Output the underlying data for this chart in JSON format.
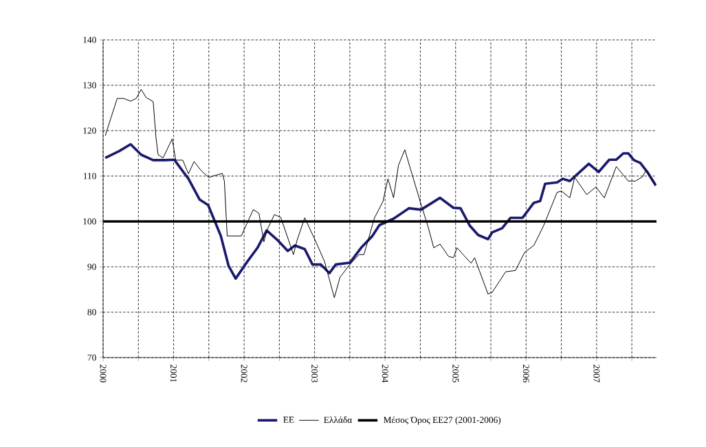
{
  "chart_data": {
    "type": "line",
    "xlim": [
      2000,
      2007.85
    ],
    "ylim": [
      70,
      140
    ],
    "xticks": [
      {
        "value": 2000,
        "label": "2000"
      },
      {
        "value": 2000.5,
        "label": null
      },
      {
        "value": 2001,
        "label": "2001"
      },
      {
        "value": 2001.5,
        "label": null
      },
      {
        "value": 2002,
        "label": "2002"
      },
      {
        "value": 2002.5,
        "label": null
      },
      {
        "value": 2003,
        "label": "2003"
      },
      {
        "value": 2003.5,
        "label": null
      },
      {
        "value": 2004,
        "label": "2004"
      },
      {
        "value": 2004.5,
        "label": null
      },
      {
        "value": 2005,
        "label": "2005"
      },
      {
        "value": 2005.5,
        "label": null
      },
      {
        "value": 2006,
        "label": "2006"
      },
      {
        "value": 2006.5,
        "label": null
      },
      {
        "value": 2007,
        "label": "2007"
      },
      {
        "value": 2007.5,
        "label": null
      }
    ],
    "yticks": [
      70,
      80,
      90,
      100,
      110,
      120,
      130,
      140
    ],
    "grid": true,
    "legend": "bottom",
    "series": [
      {
        "name": "ΕΕ",
        "color": "#1a1a6e",
        "x": [
          2000.03,
          2000.23,
          2000.39,
          2000.54,
          2000.71,
          2000.88,
          2001.01,
          2001.21,
          2001.37,
          2001.49,
          2001.67,
          2001.78,
          2001.88,
          2002.03,
          2002.19,
          2002.32,
          2002.48,
          2002.62,
          2002.72,
          2002.86,
          2002.97,
          2003.09,
          2003.21,
          2003.3,
          2003.5,
          2003.66,
          2003.82,
          2003.92,
          2004.12,
          2004.34,
          2004.51,
          2004.78,
          2004.97,
          2005.07,
          2005.2,
          2005.32,
          2005.46,
          2005.52,
          2005.66,
          2005.78,
          2005.95,
          2006.11,
          2006.2,
          2006.27,
          2006.44,
          2006.52,
          2006.62,
          2006.74,
          2006.89,
          2007.03,
          2007.18,
          2007.28,
          2007.38,
          2007.45,
          2007.53,
          2007.62,
          2007.72,
          2007.84
        ],
        "values": [
          114.0,
          115.5,
          117.0,
          114.7,
          113.5,
          113.5,
          113.6,
          109.4,
          104.8,
          103.6,
          96.8,
          90.2,
          87.4,
          90.8,
          94.2,
          98.0,
          95.8,
          93.5,
          94.7,
          93.9,
          90.5,
          90.5,
          88.6,
          90.5,
          90.9,
          94.2,
          96.8,
          99.2,
          100.6,
          102.9,
          102.6,
          105.2,
          103.0,
          102.9,
          99.1,
          97.0,
          96.1,
          97.6,
          98.5,
          100.8,
          100.8,
          104.1,
          104.5,
          108.3,
          108.6,
          109.4,
          108.9,
          110.6,
          112.7,
          110.9,
          113.6,
          113.6,
          115.0,
          115.0,
          113.5,
          112.9,
          110.9,
          107.9
        ]
      },
      {
        "name": "Ελλάδα",
        "color": "#000000",
        "x": [
          2000.03,
          2000.2,
          2000.29,
          2000.39,
          2000.47,
          2000.54,
          2000.61,
          2000.71,
          2000.75,
          2000.78,
          2000.85,
          2000.98,
          2001.03,
          2001.13,
          2001.21,
          2001.29,
          2001.39,
          2001.5,
          2001.69,
          2001.72,
          2001.76,
          2001.96,
          2002.13,
          2002.21,
          2002.28,
          2002.33,
          2002.43,
          2002.52,
          2002.7,
          2002.75,
          2002.86,
          2003.01,
          2003.14,
          2003.28,
          2003.36,
          2003.5,
          2003.63,
          2003.7,
          2003.85,
          2003.97,
          2004.04,
          2004.12,
          2004.19,
          2004.28,
          2004.38,
          2004.51,
          2004.61,
          2004.69,
          2004.78,
          2004.9,
          2004.97,
          2005.02,
          2005.13,
          2005.22,
          2005.27,
          2005.46,
          2005.52,
          2005.71,
          2005.85,
          2005.98,
          2006.11,
          2006.25,
          2006.32,
          2006.44,
          2006.5,
          2006.62,
          2006.69,
          2006.86,
          2006.99,
          2007.11,
          2007.28,
          2007.45,
          2007.55,
          2007.65,
          2007.7,
          2007.84
        ],
        "values": [
          118.9,
          127.1,
          127.1,
          126.5,
          127.1,
          129.1,
          127.3,
          126.4,
          118.5,
          114.7,
          114.0,
          118.2,
          113.5,
          113.5,
          110.5,
          113.2,
          111.2,
          109.7,
          110.6,
          108.9,
          96.8,
          96.8,
          102.6,
          101.8,
          95.5,
          98.3,
          101.5,
          100.9,
          92.7,
          95.8,
          100.8,
          95.8,
          91.2,
          83.2,
          87.7,
          90.5,
          92.7,
          92.7,
          100.8,
          104.4,
          109.4,
          105.2,
          112.4,
          115.8,
          110.5,
          103.8,
          98.8,
          94.2,
          95.0,
          92.3,
          92.0,
          94.2,
          92.3,
          90.8,
          92.0,
          84.0,
          84.4,
          88.9,
          89.2,
          93.2,
          94.7,
          99.1,
          101.8,
          106.4,
          106.7,
          105.2,
          109.7,
          105.9,
          107.6,
          105.2,
          112.1,
          108.9,
          108.9,
          109.8,
          111.2,
          108.2
        ]
      }
    ],
    "ref_lines": [
      {
        "axis": "y",
        "value": 100,
        "label": "Μέσος Όρος ΕΕ27 (2001-2006)",
        "color": "#000000"
      }
    ]
  }
}
